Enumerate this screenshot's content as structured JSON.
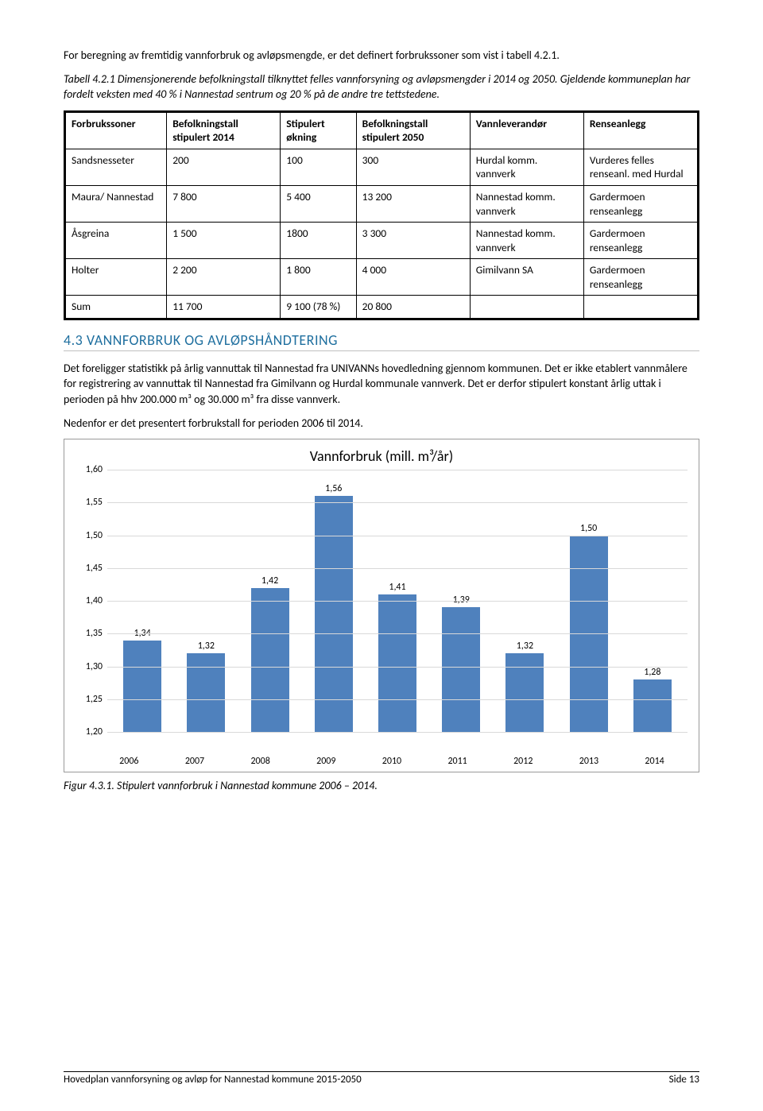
{
  "intro": "For beregning av fremtidig vannforbruk og avløpsmengde, er det definert forbrukssoner som vist i tabell 4.2.1.",
  "tabell_caption": "Tabell 4.2.1 Dimensjonerende befolkningstall tilknyttet felles vannforsyning og avløpsmengder i 2014 og 2050. Gjeldende kommuneplan har fordelt veksten med 40 % i Nannestad sentrum og 20 % på de andre tre tettstedene.",
  "table": {
    "headers": [
      "Forbrukssoner",
      "Befolkningstall stipulert 2014",
      "Stipulert økning",
      "Befolkningstall stipulert 2050",
      "Vannleverandør",
      "Renseanlegg"
    ],
    "rows": [
      {
        "c0": "Sandsnesseter",
        "c1": "200",
        "c2": "100",
        "c3": "300",
        "c4": "Hurdal komm. vannverk",
        "c5": "Vurderes felles renseanl. med Hurdal"
      },
      {
        "c0": "Maura/ Nannestad",
        "c1": "7 800",
        "c2": "5 400",
        "c3": "13 200",
        "c4": "Nannestad komm. vannverk",
        "c5": "Gardermoen renseanlegg"
      },
      {
        "c0": "Åsgreina",
        "c1": "1 500",
        "c2": "1800",
        "c3": "3 300",
        "c4": "Nannestad komm. vannverk",
        "c5": "Gardermoen renseanlegg"
      },
      {
        "c0": "Holter",
        "c1": "2 200",
        "c2": "1 800",
        "c3": "4 000",
        "c4": "Gimilvann SA",
        "c5": "Gardermoen renseanlegg"
      },
      {
        "c0": "Sum",
        "c1": "11 700",
        "c2": "9 100 (78 %)",
        "c3": "20 800",
        "c4": "",
        "c5": ""
      }
    ],
    "col_widths": [
      "16%",
      "18%",
      "12%",
      "18%",
      "18%",
      "18%"
    ]
  },
  "section_heading": "4.3 VANNFORBRUK OG AVLØPSHÅNDTERING",
  "body1": "Det foreligger statistikk på årlig vannuttak til Nannestad fra UNIVANNs hovedledning gjennom kommunen. Det er ikke etablert vannmålere for registrering av vannuttak til Nannestad fra Gimilvann og Hurdal kommunale vannverk. Det er derfor stipulert konstant årlig uttak i perioden på hhv 200.000 m³ og 30.000 m³ fra disse vannverk.",
  "body2": "Nedenfor er det presentert forbrukstall for perioden 2006 til 2014.",
  "chart": {
    "title": "Vannforbruk (mill. m³/år)",
    "type": "bar",
    "categories": [
      "2006",
      "2007",
      "2008",
      "2009",
      "2010",
      "2011",
      "2012",
      "2013",
      "2014"
    ],
    "values": [
      1.34,
      1.32,
      1.42,
      1.56,
      1.41,
      1.39,
      1.32,
      1.5,
      1.28
    ],
    "value_labels": [
      "1,34",
      "1,32",
      "1,42",
      "1,56",
      "1,41",
      "1,39",
      "1,32",
      "1,50",
      "1,28"
    ],
    "ylim": [
      1.2,
      1.6
    ],
    "ytick_step": 0.05,
    "ytick_labels": [
      "1,20",
      "1,25",
      "1,30",
      "1,35",
      "1,40",
      "1,45",
      "1,50",
      "1,55",
      "1,60"
    ],
    "bar_color": "#4f81bd",
    "grid_color": "#d9d9d9",
    "border_color": "#999999",
    "label_fontsize": 12,
    "title_fontsize": 18
  },
  "fig_caption": "Figur 4.3.1. Stipulert vannforbruk i Nannestad kommune 2006 – 2014.",
  "footer_left": "Hovedplan vannforsyning og avløp for Nannestad kommune 2015-2050",
  "footer_right": "Side 13"
}
